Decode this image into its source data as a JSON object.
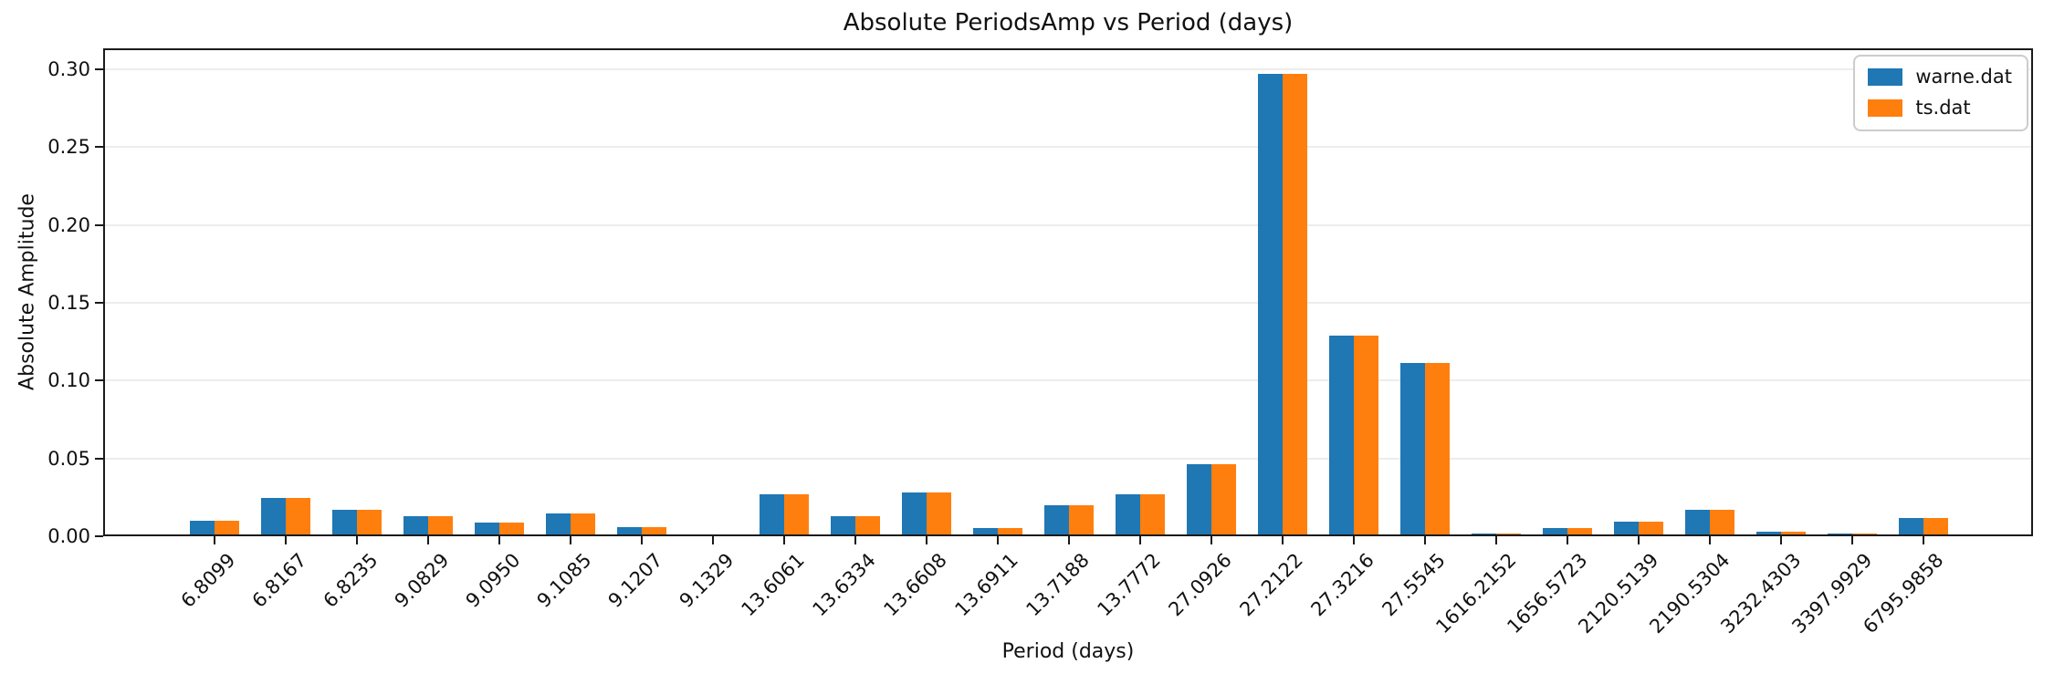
{
  "figure": {
    "background": "#ffffff",
    "axis_color": "#1a1a1a",
    "grid_color": "#ededed"
  },
  "chart_data": {
    "type": "bar",
    "title": "Absolute PeriodsAmp vs Period (days)",
    "xlabel": "Period (days)",
    "ylabel": "Absolute Amplitude",
    "categories": [
      "6.8099",
      "6.8167",
      "6.8235",
      "9.0829",
      "9.0950",
      "9.1085",
      "9.1207",
      "9.1329",
      "13.6061",
      "13.6334",
      "13.6608",
      "13.6911",
      "13.7188",
      "13.7772",
      "27.0926",
      "27.2122",
      "27.3216",
      "27.5545",
      "1616.2152",
      "1656.5723",
      "2120.5139",
      "2190.5304",
      "3232.4303",
      "3397.9929",
      "6795.9858"
    ],
    "series": [
      {
        "name": "warne.dat",
        "color": "#1f77b4",
        "values": [
          0.01,
          0.0246,
          0.0168,
          0.0131,
          0.0086,
          0.0145,
          0.0057,
          0.0,
          0.0271,
          0.0127,
          0.0281,
          0.0053,
          0.0201,
          0.0268,
          0.0461,
          0.297,
          0.1291,
          0.1114,
          0.0018,
          0.0053,
          0.0094,
          0.0168,
          0.0028,
          0.002,
          0.0115
        ]
      },
      {
        "name": "ts.dat",
        "color": "#ff7f0e",
        "values": [
          0.01,
          0.0246,
          0.0168,
          0.0131,
          0.0086,
          0.0145,
          0.0057,
          0.0,
          0.0271,
          0.0127,
          0.0281,
          0.0053,
          0.0201,
          0.0268,
          0.0461,
          0.297,
          0.1291,
          0.1114,
          0.0018,
          0.0053,
          0.0094,
          0.0168,
          0.0028,
          0.002,
          0.0115
        ]
      }
    ],
    "ylim": [
      0,
      0.3135
    ],
    "yticks": [
      "0.00",
      "0.05",
      "0.10",
      "0.15",
      "0.20",
      "0.25",
      "0.30"
    ],
    "grid": "horizontal",
    "legend_position": "upper right",
    "x_tick_rotation": 45
  }
}
